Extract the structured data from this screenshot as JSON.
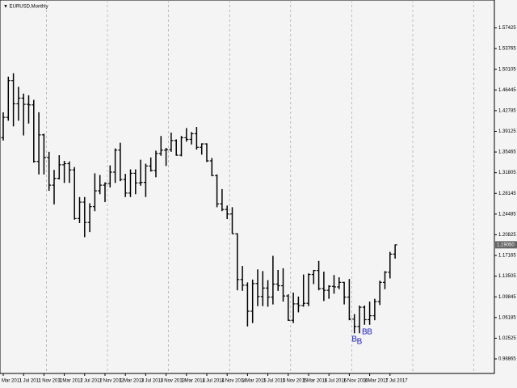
{
  "chart_data": {
    "type": "ohlc",
    "title": "▼ EURUSD,Monthly",
    "categories": [
      "1 Mar 2011",
      null,
      null,
      null,
      "1 Jul 2011",
      null,
      null,
      null,
      "1 Nov 2011",
      null,
      null,
      null,
      "1 Mar 2012",
      null,
      null,
      null,
      "1 Jul 2012",
      null,
      null,
      null,
      "1 Nov 2012",
      null,
      null,
      null,
      "1 Mar 2013",
      null,
      null,
      null,
      "1 Jul 2013",
      null,
      null,
      null,
      "1 Nov 2013",
      null,
      null,
      null,
      "1 Mar 2014",
      null,
      null,
      null,
      "1 Jul 2014",
      null,
      null,
      null,
      "1 Nov 2014",
      null,
      null,
      null,
      "1 Mar 2015",
      null,
      null,
      null,
      "1 Jul 2015",
      null,
      null,
      null,
      "1 Nov 2015",
      null,
      null,
      null,
      "1 Mar 2016",
      null,
      null,
      null,
      "1 Jul 2016",
      null,
      null,
      null,
      "1 Nov 2016",
      null,
      null,
      null,
      "1 Mar 2017",
      null,
      null,
      null,
      "1 Jul 2017",
      null
    ],
    "open": [
      1.38,
      1.416,
      1.481,
      1.44,
      1.45,
      1.439,
      1.438,
      1.338,
      1.385,
      1.345,
      1.296,
      1.308,
      1.332,
      1.334,
      1.323,
      1.237,
      1.266,
      1.23,
      1.258,
      1.286,
      1.296,
      1.299,
      1.319,
      1.358,
      1.306,
      1.282,
      1.317,
      1.3,
      1.301,
      1.33,
      1.322,
      1.352,
      1.358,
      1.359,
      1.375,
      1.349,
      1.38,
      1.377,
      1.387,
      1.363,
      1.369,
      1.339,
      1.313,
      1.263,
      1.253,
      1.245,
      1.21,
      1.129,
      1.119,
      1.073,
      1.122,
      1.099,
      1.114,
      1.098,
      1.121,
      1.118,
      1.1,
      1.057,
      1.086,
      1.083,
      1.087,
      1.138,
      1.145,
      1.113,
      1.11,
      1.117,
      1.116,
      1.124,
      1.098,
      1.059,
      1.046,
      1.08,
      1.058,
      1.065,
      1.09,
      1.124,
      1.142,
      1.174
    ],
    "high": [
      1.425,
      1.488,
      1.494,
      1.47,
      1.458,
      1.455,
      1.447,
      1.425,
      1.387,
      1.355,
      1.323,
      1.349,
      1.339,
      1.338,
      1.328,
      1.275,
      1.275,
      1.264,
      1.317,
      1.314,
      1.301,
      1.331,
      1.361,
      1.371,
      1.316,
      1.324,
      1.324,
      1.341,
      1.334,
      1.345,
      1.357,
      1.383,
      1.362,
      1.389,
      1.377,
      1.383,
      1.397,
      1.39,
      1.399,
      1.37,
      1.37,
      1.344,
      1.315,
      1.289,
      1.26,
      1.257,
      1.211,
      1.153,
      1.124,
      1.129,
      1.147,
      1.144,
      1.128,
      1.171,
      1.146,
      1.149,
      1.103,
      1.106,
      1.099,
      1.138,
      1.14,
      1.146,
      1.162,
      1.143,
      1.119,
      1.137,
      1.133,
      1.125,
      1.13,
      1.068,
      1.083,
      1.083,
      1.09,
      1.095,
      1.127,
      1.144,
      1.178,
      1.191
    ],
    "low": [
      1.375,
      1.41,
      1.4,
      1.41,
      1.384,
      1.405,
      1.336,
      1.315,
      1.315,
      1.286,
      1.262,
      1.306,
      1.3,
      1.3,
      1.235,
      1.229,
      1.204,
      1.213,
      1.25,
      1.28,
      1.266,
      1.292,
      1.3,
      1.303,
      1.275,
      1.275,
      1.28,
      1.295,
      1.275,
      1.32,
      1.31,
      1.348,
      1.33,
      1.355,
      1.348,
      1.347,
      1.373,
      1.368,
      1.359,
      1.35,
      1.337,
      1.312,
      1.257,
      1.25,
      1.236,
      1.21,
      1.11,
      1.109,
      1.046,
      1.052,
      1.082,
      1.082,
      1.081,
      1.085,
      1.109,
      1.09,
      1.056,
      1.052,
      1.071,
      1.081,
      1.082,
      1.121,
      1.11,
      1.091,
      1.095,
      1.104,
      1.112,
      1.085,
      1.057,
      1.034,
      1.034,
      1.049,
      1.049,
      1.057,
      1.084,
      1.112,
      1.131,
      1.166
    ],
    "close": [
      1.416,
      1.481,
      1.44,
      1.45,
      1.439,
      1.438,
      1.338,
      1.385,
      1.345,
      1.296,
      1.308,
      1.332,
      1.334,
      1.323,
      1.237,
      1.266,
      1.23,
      1.258,
      1.286,
      1.296,
      1.299,
      1.319,
      1.358,
      1.306,
      1.282,
      1.317,
      1.3,
      1.301,
      1.33,
      1.322,
      1.352,
      1.358,
      1.359,
      1.375,
      1.349,
      1.38,
      1.377,
      1.387,
      1.363,
      1.369,
      1.339,
      1.313,
      1.263,
      1.253,
      1.245,
      1.21,
      1.129,
      1.119,
      1.073,
      1.122,
      1.099,
      1.114,
      1.098,
      1.121,
      1.118,
      1.1,
      1.057,
      1.086,
      1.083,
      1.087,
      1.138,
      1.145,
      1.113,
      1.11,
      1.117,
      1.116,
      1.124,
      1.098,
      1.059,
      1.046,
      1.08,
      1.058,
      1.065,
      1.09,
      1.124,
      1.142,
      1.174,
      1.1905
    ],
    "color": "#000000",
    "ylim": [
      0.9629,
      1.6236
    ],
    "yticks": [
      0.98865,
      1.02525,
      1.06185,
      1.09845,
      1.13505,
      1.17165,
      1.20825,
      1.24485,
      1.28145,
      1.31805,
      1.35465,
      1.39125,
      1.42785,
      1.46445,
      1.50105,
      1.53765,
      1.57425
    ],
    "last_price": {
      "value": 1.1905,
      "label": "1.19050"
    },
    "signals": [
      {
        "label": "B",
        "x": 69,
        "y": 1.023,
        "color": "#1a1acc"
      },
      {
        "label": "B",
        "x": 70,
        "y": 1.019,
        "color": "#1a1acc"
      },
      {
        "label": "B",
        "x": 71,
        "y": 1.036,
        "color": "#1a1acc"
      },
      {
        "label": "B",
        "x": 72,
        "y": 1.036,
        "color": "#1a1acc"
      }
    ]
  }
}
